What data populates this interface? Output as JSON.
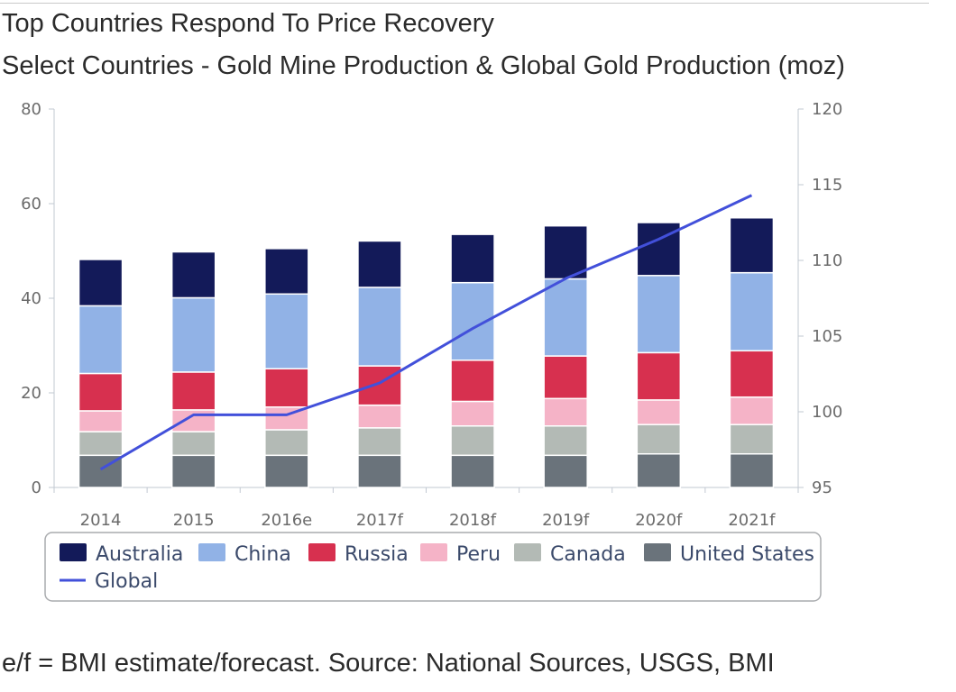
{
  "chart_data": {
    "type": "bar",
    "stacked": true,
    "title": "Top Countries Respond To Price Recovery",
    "subtitle": "Select Countries - Gold Mine Production & Global Gold Production (moz)",
    "categories": [
      "2014",
      "2015",
      "2016e",
      "2017f",
      "2018f",
      "2019f",
      "2020f",
      "2021f"
    ],
    "y_left": {
      "min": 0,
      "max": 80,
      "ticks": [
        0,
        20,
        40,
        60,
        80
      ]
    },
    "y_right": {
      "min": 95,
      "max": 120,
      "ticks": [
        95,
        100,
        105,
        110,
        115,
        120
      ]
    },
    "series": [
      {
        "name": "United States",
        "color": "#6a737b",
        "values": [
          6.8,
          6.8,
          6.8,
          6.8,
          6.8,
          6.8,
          7.1,
          7.1
        ]
      },
      {
        "name": "Canada",
        "color": "#b3bab5",
        "values": [
          5.0,
          5.0,
          5.4,
          5.8,
          6.2,
          6.2,
          6.2,
          6.2
        ]
      },
      {
        "name": "Peru",
        "color": "#f5b3c7",
        "values": [
          4.4,
          4.6,
          4.8,
          4.8,
          5.2,
          5.8,
          5.2,
          5.8
        ]
      },
      {
        "name": "Russia",
        "color": "#d7304f",
        "values": [
          7.9,
          8.0,
          8.1,
          8.3,
          8.7,
          9.0,
          10.0,
          9.8
        ]
      },
      {
        "name": "China",
        "color": "#91b2e6",
        "values": [
          14.3,
          15.7,
          15.8,
          16.6,
          16.4,
          16.3,
          16.3,
          16.5
        ]
      },
      {
        "name": "Australia",
        "color": "#131a59",
        "values": [
          9.8,
          9.7,
          9.6,
          9.8,
          10.2,
          11.2,
          11.2,
          11.6
        ]
      }
    ],
    "line": {
      "name": "Global",
      "axis": "right",
      "color": "#4250da",
      "values": [
        96.2,
        99.8,
        99.8,
        101.9,
        105.5,
        108.8,
        111.4,
        114.3
      ]
    },
    "legend": {
      "position": "bottom",
      "items": [
        "Australia",
        "China",
        "Russia",
        "Peru",
        "Canada",
        "United States",
        "Global"
      ]
    }
  },
  "footnote": "e/f = BMI estimate/forecast. Source: National Sources, USGS, BMI"
}
